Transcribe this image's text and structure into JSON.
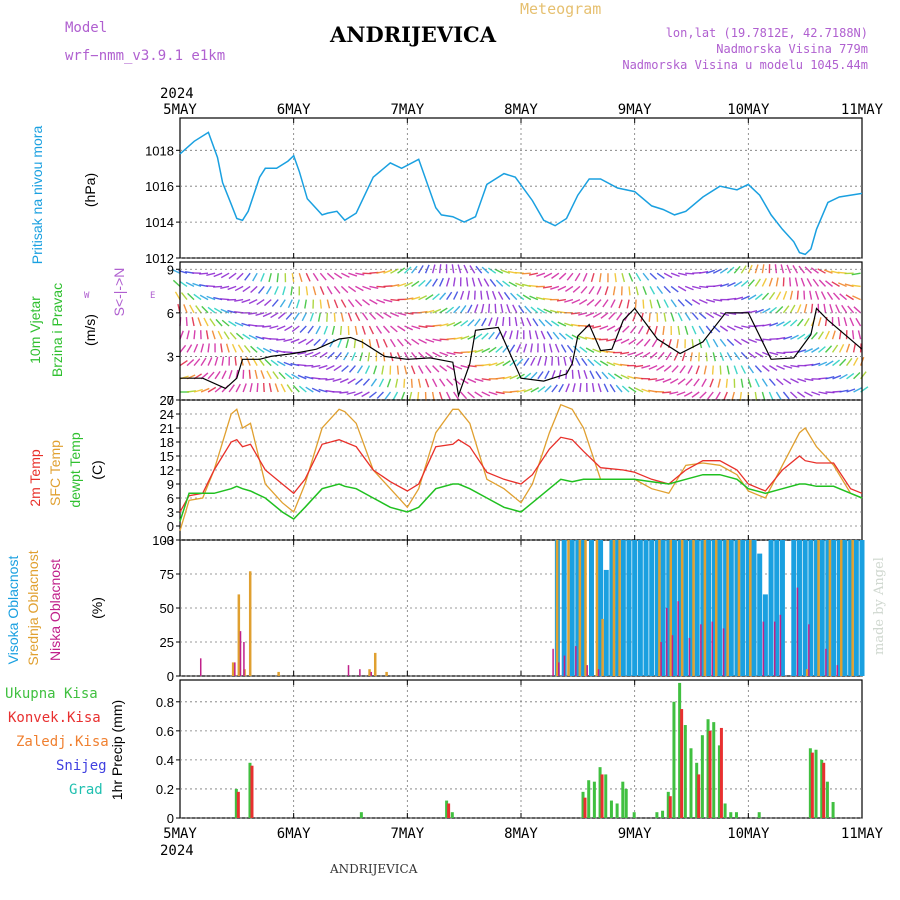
{
  "header": {
    "title": "ANDRIJEVICA",
    "model_label": "Model",
    "model_version": "wrf−nmm_v3.9.1  e1km",
    "meteogram": "Meteogram",
    "lonlat": "lon,lat (19.7812E, 42.7188N)",
    "altitude": "Nadmorska Visina 779m",
    "model_altitude": "Nadmorska Visina u modelu 1045.44m",
    "year_top": "2024",
    "year_bottom": "2024",
    "footer": "ANDRIJEVICA",
    "watermark": "made by Angel"
  },
  "axis_labels": {
    "pressure_title": "Pritisak na nivou mora",
    "pressure_unit": "(hPa)",
    "wind_title1": "10m Vjetar",
    "wind_title2": "Brzina i Pravac",
    "wind_unit": "(m/s)",
    "wind_compass_w": "W",
    "wind_compass_e": "E",
    "wind_compass_ns": "S<-|->N",
    "temp_title1": "2m Temp",
    "temp_title2": "SFC Temp",
    "temp_title3": "dewpt Temp",
    "temp_unit": "(C)",
    "cloud_title1": "Visoka Oblacnost",
    "cloud_title2": "Srednja Oblacnost",
    "cloud_title3": "Niska Oblacnost",
    "cloud_unit": "(%)",
    "precip_unit": "1hr Precip (mm)",
    "precip_legend": [
      "Ukupna Kisa",
      "Konvek.Kisa",
      "Zaledj.Kisa",
      "Snijeg",
      "Grad"
    ]
  },
  "colors": {
    "pressure": "#1aa0e0",
    "wind_speed": "#000000",
    "temp2m": "#e8302a",
    "sfc_temp": "#e0a030",
    "dewpt": "#20c020",
    "cloud_high": "#1aa0e0",
    "cloud_mid": "#e0a030",
    "cloud_low": "#c0208a",
    "precip_total": "#40c040",
    "precip_conv": "#e83030",
    "precip_frz": "#f08030",
    "precip_snow": "#4040e0",
    "precip_hail": "#20c0b0"
  },
  "chart_data": [
    {
      "type": "line",
      "panel": "pressure",
      "x_ticks": [
        "5MAY",
        "6MAY",
        "7MAY",
        "8MAY",
        "9MAY",
        "10MAY",
        "11MAY"
      ],
      "ylim": [
        1012,
        1019.8
      ],
      "yticks": [
        1012,
        1014,
        1016,
        1018
      ],
      "x_days": [
        0,
        0.125,
        0.25,
        0.33,
        0.375,
        0.45,
        0.5,
        0.55,
        0.6,
        0.7,
        0.75,
        0.85,
        0.95,
        1,
        1.05,
        1.12,
        1.25,
        1.3,
        1.38,
        1.45,
        1.55,
        1.7,
        1.85,
        1.95,
        2.1,
        2.25,
        2.3,
        2.4,
        2.5,
        2.6,
        2.7,
        2.85,
        2.95,
        3.1,
        3.2,
        3.3,
        3.4,
        3.5,
        3.6,
        3.7,
        3.85,
        4,
        4.15,
        4.25,
        4.35,
        4.45,
        4.6,
        4.75,
        4.9,
        5,
        5.1,
        5.2,
        5.3,
        5.4,
        5.45,
        5.5,
        5.55,
        5.6,
        5.7,
        5.8,
        6
      ],
      "values": [
        1017.8,
        1018.5,
        1019,
        1017.6,
        1016.2,
        1015.0,
        1014.2,
        1014.1,
        1014.6,
        1016.5,
        1017.0,
        1017.0,
        1017.4,
        1017.7,
        1016.8,
        1015.3,
        1014.4,
        1014.5,
        1014.6,
        1014.1,
        1014.5,
        1016.5,
        1017.3,
        1017.0,
        1017.5,
        1014.8,
        1014.4,
        1014.3,
        1014.0,
        1014.3,
        1016.1,
        1016.7,
        1016.5,
        1015.2,
        1014.1,
        1013.8,
        1014.2,
        1015.5,
        1016.4,
        1016.4,
        1015.9,
        1015.7,
        1014.9,
        1014.7,
        1014.4,
        1014.6,
        1015.4,
        1016.0,
        1015.8,
        1016.1,
        1015.5,
        1014.4,
        1013.6,
        1012.9,
        1012.3,
        1012.2,
        1012.5,
        1013.6,
        1015.1,
        1015.4,
        1015.6
      ]
    },
    {
      "type": "line",
      "panel": "wind",
      "ylim": [
        0,
        9.5
      ],
      "yticks": [
        0,
        3,
        6,
        9
      ],
      "x_days": [
        0,
        0.2,
        0.4,
        0.5,
        0.55,
        0.7,
        0.8,
        1,
        1.2,
        1.4,
        1.5,
        1.6,
        1.8,
        2,
        2.2,
        2.4,
        2.45,
        2.55,
        2.6,
        2.8,
        3,
        3.2,
        3.4,
        3.45,
        3.5,
        3.6,
        3.7,
        3.8,
        3.9,
        4,
        4.2,
        4.4,
        4.6,
        4.8,
        5,
        5.2,
        5.4,
        5.55,
        5.6,
        5.7,
        6
      ],
      "values": [
        1.5,
        1.5,
        0.8,
        1.5,
        2.8,
        2.8,
        3.0,
        3.2,
        3.5,
        4.2,
        4.3,
        4.0,
        3.0,
        2.8,
        2.9,
        2.6,
        0.3,
        2.5,
        4.8,
        5.0,
        1.5,
        1.3,
        1.8,
        2.5,
        4.4,
        5.2,
        3.4,
        3.5,
        5.5,
        6.3,
        4.2,
        3.2,
        4.0,
        6.0,
        6.0,
        2.8,
        2.9,
        4.5,
        6.3,
        5.5,
        3.5
      ]
    },
    {
      "type": "line",
      "panel": "temperature",
      "ylim": [
        -3,
        27
      ],
      "yticks": [
        -3,
        0,
        3,
        6,
        9,
        12,
        15,
        18,
        21,
        24,
        27
      ],
      "x_days": [
        0,
        0.08,
        0.2,
        0.3,
        0.45,
        0.5,
        0.55,
        0.62,
        0.75,
        0.9,
        1,
        1.1,
        1.25,
        1.4,
        1.45,
        1.55,
        1.7,
        1.85,
        2,
        2.1,
        2.25,
        2.4,
        2.45,
        2.55,
        2.7,
        2.85,
        3,
        3.1,
        3.25,
        3.35,
        3.45,
        3.55,
        3.7,
        3.9,
        4,
        4.15,
        4.3,
        4.45,
        4.6,
        4.75,
        4.9,
        5,
        5.15,
        5.3,
        5.45,
        5.5,
        5.6,
        5.75,
        5.9,
        6
      ],
      "series": [
        {
          "name": "2m Temp",
          "values": [
            3,
            6.5,
            7,
            12,
            18,
            18.5,
            17,
            17.5,
            12,
            9,
            7,
            10,
            17.5,
            18.5,
            18,
            17,
            12,
            9.5,
            7.5,
            9,
            17,
            17.5,
            18.5,
            17,
            11.5,
            10,
            9,
            11,
            16.5,
            19,
            18.5,
            16,
            12.5,
            12,
            11.5,
            10,
            9,
            12,
            14,
            14,
            12,
            9,
            7.5,
            12,
            15,
            14,
            13.5,
            13.5,
            8,
            7
          ]
        },
        {
          "name": "SFC Temp",
          "values": [
            -1,
            5.5,
            6,
            12,
            24,
            25,
            21,
            22,
            9,
            5,
            3,
            9,
            21,
            25,
            24.5,
            22,
            12,
            8,
            4,
            8,
            20,
            25,
            25,
            22,
            10,
            8,
            5,
            9,
            20,
            26,
            25,
            21,
            10,
            10,
            10,
            8,
            7,
            13,
            13.5,
            13,
            11,
            7.5,
            6,
            13,
            20,
            21,
            17,
            13,
            7,
            6
          ]
        },
        {
          "name": "dewpt Temp",
          "values": [
            1,
            7,
            7,
            7,
            8,
            8.5,
            8,
            7.5,
            6,
            3,
            1.5,
            4,
            8,
            9,
            8.5,
            8,
            6,
            4,
            3,
            4,
            8,
            9,
            9,
            8,
            6,
            4,
            3,
            5,
            8,
            10,
            9.5,
            10,
            10,
            10,
            10,
            9.5,
            9,
            10,
            11,
            11,
            10,
            8,
            7,
            8,
            9,
            9,
            8.5,
            8.5,
            7,
            6
          ]
        }
      ]
    },
    {
      "type": "bar",
      "panel": "cloud_cover",
      "ylim": [
        0,
        100
      ],
      "yticks": [
        0,
        25,
        50,
        75,
        100
      ],
      "series": [
        {
          "name": "Visoka Oblacnost",
          "x_days": [
            3.32,
            3.38,
            3.45,
            3.5,
            3.55,
            3.62,
            3.7,
            3.75,
            3.8,
            3.85,
            3.9,
            3.95,
            4.0,
            4.05,
            4.1,
            4.15,
            4.2,
            4.25,
            4.3,
            4.35,
            4.4,
            4.45,
            4.5,
            4.55,
            4.6,
            4.65,
            4.7,
            4.75,
            4.8,
            4.85,
            4.9,
            4.95,
            5.0,
            5.05,
            5.1,
            5.15,
            5.2,
            5.25,
            5.3,
            5.4,
            5.45,
            5.5,
            5.55,
            5.6,
            5.65,
            5.7,
            5.75,
            5.8,
            5.85,
            5.9,
            5.95,
            6.0
          ],
          "values": [
            100,
            100,
            100,
            100,
            100,
            100,
            100,
            78,
            100,
            100,
            100,
            100,
            100,
            100,
            100,
            100,
            100,
            100,
            100,
            100,
            100,
            100,
            100,
            100,
            100,
            100,
            100,
            100,
            100,
            100,
            100,
            100,
            100,
            100,
            90,
            60,
            100,
            100,
            100,
            100,
            100,
            100,
            100,
            100,
            100,
            100,
            100,
            100,
            100,
            100,
            100,
            100
          ]
        },
        {
          "name": "Srednja Oblacnost",
          "x_days": [
            0.45,
            0.5,
            0.55,
            0.6,
            0.85,
            1.65,
            1.7,
            1.8,
            3.3,
            3.4,
            3.5,
            3.55,
            3.65,
            3.7,
            3.8,
            3.85,
            4.2,
            4.3,
            4.4,
            4.5,
            4.6,
            4.7,
            4.8,
            4.9,
            5.0,
            5.5,
            5.6,
            5.7,
            5.8,
            5.9
          ],
          "values": [
            10,
            60,
            5,
            77,
            3,
            5,
            17,
            3,
            100,
            100,
            100,
            100,
            100,
            42,
            100,
            100,
            100,
            100,
            100,
            100,
            100,
            100,
            100,
            100,
            100,
            5,
            100,
            100,
            100,
            100
          ]
        },
        {
          "name": "Niska Oblacnost",
          "x_days": [
            0.2,
            0.5,
            0.55,
            0.58,
            1.5,
            1.6,
            1.7,
            3.3,
            3.35,
            3.4,
            3.5,
            3.6,
            3.7,
            4.25,
            4.3,
            4.35,
            4.4,
            4.5,
            4.6,
            4.7,
            4.8,
            5.15,
            5.25,
            5.3,
            5.45,
            5.55,
            5.7,
            5.8
          ],
          "values": [
            13,
            10,
            33,
            25,
            8,
            5,
            3,
            20,
            10,
            15,
            22,
            8,
            5,
            25,
            50,
            30,
            55,
            28,
            38,
            40,
            35,
            40,
            40,
            45,
            65,
            38,
            20,
            8
          ]
        }
      ]
    },
    {
      "type": "bar",
      "panel": "precipitation",
      "ylim": [
        0,
        0.95
      ],
      "yticks": [
        0,
        0.2,
        0.4,
        0.6,
        0.8
      ],
      "series": [
        {
          "name": "Ukupna Kisa",
          "x_days": [
            0.5,
            0.62,
            1.6,
            2.35,
            2.4,
            3.55,
            3.6,
            3.65,
            3.7,
            3.75,
            3.8,
            3.85,
            3.9,
            3.93,
            4.0,
            4.2,
            4.25,
            4.3,
            4.35,
            4.4,
            4.45,
            4.5,
            4.55,
            4.6,
            4.65,
            4.7,
            4.75,
            4.8,
            4.85,
            4.9,
            5.1,
            5.55,
            5.6,
            5.65,
            5.7,
            5.75
          ],
          "values": [
            0.2,
            0.38,
            0.04,
            0.12,
            0.04,
            0.18,
            0.26,
            0.25,
            0.35,
            0.3,
            0.12,
            0.1,
            0.25,
            0.2,
            0.04,
            0.04,
            0.05,
            0.18,
            0.8,
            0.93,
            0.64,
            0.48,
            0.38,
            0.57,
            0.68,
            0.66,
            0.5,
            0.1,
            0.04,
            0.04,
            0.04,
            0.48,
            0.47,
            0.4,
            0.25,
            0.11
          ]
        },
        {
          "name": "Konvek.Kisa",
          "x_days": [
            0.5,
            0.62,
            2.35,
            3.55,
            3.7,
            4.3,
            4.4,
            4.55,
            4.65,
            4.75,
            5.55,
            5.65
          ],
          "values": [
            0.18,
            0.36,
            0.1,
            0.14,
            0.3,
            0.15,
            0.75,
            0.3,
            0.6,
            0.62,
            0.45,
            0.38
          ]
        }
      ]
    }
  ]
}
